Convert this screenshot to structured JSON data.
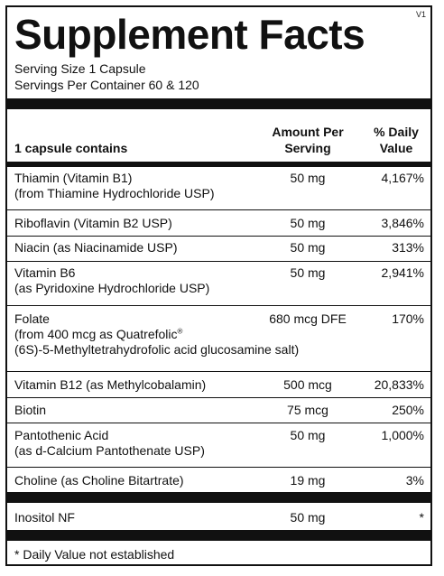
{
  "version": "V1",
  "title": "Supplement Facts",
  "serving_size": "Serving Size 1 Capsule",
  "servings_per_container": "Servings Per Container 60 & 120",
  "headers": {
    "contains": "1 capsule contains",
    "amount_line1": "Amount Per",
    "amount_line2": "Serving",
    "dv_line1": "% Daily",
    "dv_line2": "Value"
  },
  "rows": [
    {
      "name": "Thiamin (Vitamin B1)",
      "sub": "(from Thiamine Hydrochloride USP)",
      "amount": "50 mg",
      "dv": "4,167%"
    },
    {
      "name": "Riboflavin (Vitamin B2 USP)",
      "amount": "50 mg",
      "dv": "3,846%"
    },
    {
      "name": "Niacin (as Niacinamide USP)",
      "amount": "50 mg",
      "dv": "313%"
    },
    {
      "name": "Vitamin B6",
      "sub": "(as Pyridoxine Hydrochloride USP)",
      "amount": "50 mg",
      "dv": "2,941%"
    },
    {
      "name": "Folate",
      "sub": "(from 400 mcg as Quatrefolic",
      "sub_mark": "®",
      "sub2": "(6S)-5-Methyltetrahydrofolic acid glucosamine salt)",
      "amount": "680 mcg DFE",
      "dv": "170%"
    },
    {
      "name": "Vitamin B12 (as Methylcobalamin)",
      "amount": "500 mcg",
      "dv": "20,833%"
    },
    {
      "name": "Biotin",
      "amount": "75 mcg",
      "dv": "250%"
    },
    {
      "name": "Pantothenic Acid",
      "sub": "(as d-Calcium Pantothenate USP)",
      "amount": "50 mg",
      "dv": "1,000%"
    },
    {
      "name": "Choline (as Choline Bitartrate)",
      "amount": "19 mg",
      "dv": "3%"
    },
    {
      "name": "Inositol NF",
      "amount": "50 mg",
      "dv": "*"
    }
  ],
  "footnote": "* Daily Value not established"
}
